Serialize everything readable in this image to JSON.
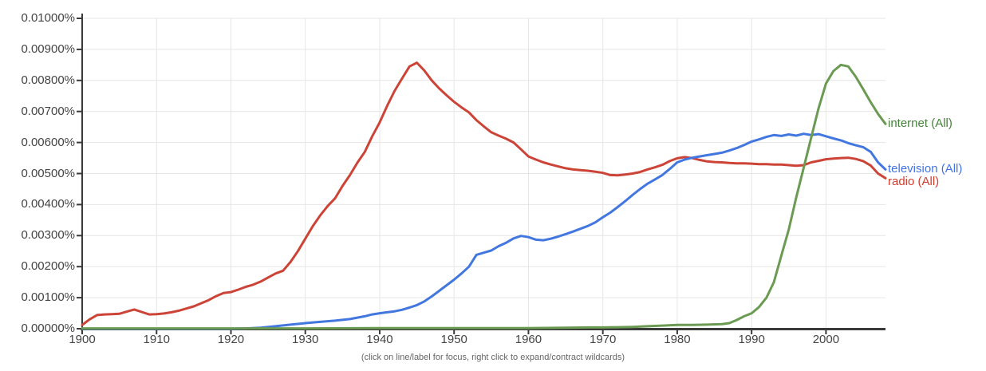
{
  "caption": "(click on line/label for focus, right click to expand/contract wildcards)",
  "colors": {
    "grid": "#e6e6e6",
    "axis": "#3a3a3a",
    "tick_text": "#444444",
    "caption_text": "#666666",
    "background": "#ffffff"
  },
  "chart_data": {
    "type": "line",
    "title": "",
    "xlabel": "",
    "ylabel": "",
    "grid": true,
    "legend_position": "right-end-labels",
    "x_axis": {
      "min": 1900,
      "max": 2008,
      "tick_years": [
        1900,
        1910,
        1920,
        1930,
        1940,
        1950,
        1960,
        1970,
        1980,
        1990,
        2000
      ],
      "tick_labels": [
        "1900",
        "1910",
        "1920",
        "1930",
        "1940",
        "1950",
        "1960",
        "1970",
        "1980",
        "1990",
        "2000"
      ]
    },
    "y_axis": {
      "min": 0,
      "max": 0.01,
      "tick_values": [
        0,
        0.001,
        0.002,
        0.003,
        0.004,
        0.005,
        0.006,
        0.007,
        0.008,
        0.009,
        0.01
      ],
      "tick_labels": [
        "0.00000%",
        "0.00100%",
        "0.00200%",
        "0.00300%",
        "0.00400%",
        "0.00500%",
        "0.00600%",
        "0.00700%",
        "0.00800%",
        "0.00900%",
        "0.01000%"
      ],
      "unit": "% of corpus"
    },
    "series": [
      {
        "name": "radio (All)",
        "key": "radio",
        "color": "#cc4437",
        "label_color": "#d43d2d",
        "points": [
          [
            1900,
            0.00012
          ],
          [
            1901,
            0.0003
          ],
          [
            1902,
            0.00044
          ],
          [
            1903,
            0.00046
          ],
          [
            1904,
            0.00047
          ],
          [
            1905,
            0.00048
          ],
          [
            1906,
            0.00055
          ],
          [
            1907,
            0.00062
          ],
          [
            1908,
            0.00054
          ],
          [
            1909,
            0.00046
          ],
          [
            1910,
            0.00047
          ],
          [
            1911,
            0.00049
          ],
          [
            1912,
            0.00053
          ],
          [
            1913,
            0.00058
          ],
          [
            1914,
            0.00065
          ],
          [
            1915,
            0.00072
          ],
          [
            1916,
            0.00082
          ],
          [
            1917,
            0.00092
          ],
          [
            1918,
            0.00105
          ],
          [
            1919,
            0.00115
          ],
          [
            1920,
            0.00118
          ],
          [
            1921,
            0.00126
          ],
          [
            1922,
            0.00135
          ],
          [
            1923,
            0.00142
          ],
          [
            1924,
            0.00152
          ],
          [
            1925,
            0.00165
          ],
          [
            1926,
            0.00178
          ],
          [
            1927,
            0.00187
          ],
          [
            1928,
            0.00215
          ],
          [
            1929,
            0.0025
          ],
          [
            1930,
            0.0029
          ],
          [
            1931,
            0.0033
          ],
          [
            1932,
            0.00365
          ],
          [
            1933,
            0.00395
          ],
          [
            1934,
            0.0042
          ],
          [
            1935,
            0.0046
          ],
          [
            1936,
            0.00495
          ],
          [
            1937,
            0.00535
          ],
          [
            1938,
            0.0057
          ],
          [
            1939,
            0.0062
          ],
          [
            1940,
            0.00665
          ],
          [
            1941,
            0.00718
          ],
          [
            1942,
            0.00766
          ],
          [
            1943,
            0.00806
          ],
          [
            1944,
            0.00845
          ],
          [
            1945,
            0.00857
          ],
          [
            1946,
            0.00832
          ],
          [
            1947,
            0.008
          ],
          [
            1948,
            0.00774
          ],
          [
            1949,
            0.00752
          ],
          [
            1950,
            0.00731
          ],
          [
            1951,
            0.00713
          ],
          [
            1952,
            0.00697
          ],
          [
            1953,
            0.00672
          ],
          [
            1954,
            0.00652
          ],
          [
            1955,
            0.00633
          ],
          [
            1956,
            0.00622
          ],
          [
            1957,
            0.00612
          ],
          [
            1958,
            0.006
          ],
          [
            1959,
            0.00578
          ],
          [
            1960,
            0.00555
          ],
          [
            1961,
            0.00545
          ],
          [
            1962,
            0.00536
          ],
          [
            1963,
            0.00529
          ],
          [
            1964,
            0.00523
          ],
          [
            1965,
            0.00517
          ],
          [
            1966,
            0.00513
          ],
          [
            1967,
            0.00511
          ],
          [
            1968,
            0.00509
          ],
          [
            1969,
            0.00506
          ],
          [
            1970,
            0.00502
          ],
          [
            1971,
            0.00495
          ],
          [
            1972,
            0.00494
          ],
          [
            1973,
            0.00497
          ],
          [
            1974,
            0.005
          ],
          [
            1975,
            0.00505
          ],
          [
            1976,
            0.00513
          ],
          [
            1977,
            0.0052
          ],
          [
            1978,
            0.00528
          ],
          [
            1979,
            0.0054
          ],
          [
            1980,
            0.00549
          ],
          [
            1981,
            0.00553
          ],
          [
            1982,
            0.0055
          ],
          [
            1983,
            0.00544
          ],
          [
            1984,
            0.00539
          ],
          [
            1985,
            0.00537
          ],
          [
            1986,
            0.00536
          ],
          [
            1987,
            0.00534
          ],
          [
            1988,
            0.00533
          ],
          [
            1989,
            0.00533
          ],
          [
            1990,
            0.00532
          ],
          [
            1991,
            0.0053
          ],
          [
            1992,
            0.0053
          ],
          [
            1993,
            0.00529
          ],
          [
            1994,
            0.00529
          ],
          [
            1995,
            0.00527
          ],
          [
            1996,
            0.00525
          ],
          [
            1997,
            0.00527
          ],
          [
            1998,
            0.00536
          ],
          [
            1999,
            0.00541
          ],
          [
            2000,
            0.00546
          ],
          [
            2001,
            0.00548
          ],
          [
            2002,
            0.0055
          ],
          [
            2003,
            0.00551
          ],
          [
            2004,
            0.00547
          ],
          [
            2005,
            0.0054
          ],
          [
            2006,
            0.00526
          ],
          [
            2007,
            0.005
          ],
          [
            2008,
            0.00485
          ]
        ]
      },
      {
        "name": "television (All)",
        "key": "television",
        "color": "#4377e0",
        "label_color": "#4274e8",
        "points": [
          [
            1900,
            0
          ],
          [
            1905,
            0
          ],
          [
            1910,
            0
          ],
          [
            1915,
            0
          ],
          [
            1920,
            0
          ],
          [
            1922,
            1e-05
          ],
          [
            1924,
            3e-05
          ],
          [
            1926,
            8e-05
          ],
          [
            1928,
            0.00013
          ],
          [
            1930,
            0.00018
          ],
          [
            1932,
            0.00022
          ],
          [
            1934,
            0.00026
          ],
          [
            1936,
            0.00031
          ],
          [
            1938,
            0.0004
          ],
          [
            1939,
            0.00046
          ],
          [
            1940,
            0.0005
          ],
          [
            1941,
            0.00053
          ],
          [
            1942,
            0.00056
          ],
          [
            1943,
            0.00061
          ],
          [
            1944,
            0.00068
          ],
          [
            1945,
            0.00076
          ],
          [
            1946,
            0.00088
          ],
          [
            1947,
            0.00104
          ],
          [
            1948,
            0.00122
          ],
          [
            1949,
            0.0014
          ],
          [
            1950,
            0.00158
          ],
          [
            1951,
            0.00178
          ],
          [
            1952,
            0.002
          ],
          [
            1953,
            0.00238
          ],
          [
            1954,
            0.00245
          ],
          [
            1955,
            0.00252
          ],
          [
            1956,
            0.00266
          ],
          [
            1957,
            0.00277
          ],
          [
            1958,
            0.00291
          ],
          [
            1959,
            0.00299
          ],
          [
            1960,
            0.00295
          ],
          [
            1961,
            0.00287
          ],
          [
            1962,
            0.00285
          ],
          [
            1963,
            0.0029
          ],
          [
            1964,
            0.00297
          ],
          [
            1965,
            0.00305
          ],
          [
            1966,
            0.00313
          ],
          [
            1967,
            0.00322
          ],
          [
            1968,
            0.00331
          ],
          [
            1969,
            0.00343
          ],
          [
            1970,
            0.00359
          ],
          [
            1971,
            0.00374
          ],
          [
            1972,
            0.00392
          ],
          [
            1973,
            0.00411
          ],
          [
            1974,
            0.00431
          ],
          [
            1975,
            0.0045
          ],
          [
            1976,
            0.00467
          ],
          [
            1977,
            0.00481
          ],
          [
            1978,
            0.00495
          ],
          [
            1979,
            0.00515
          ],
          [
            1980,
            0.00536
          ],
          [
            1981,
            0.00545
          ],
          [
            1982,
            0.00551
          ],
          [
            1983,
            0.00555
          ],
          [
            1984,
            0.00559
          ],
          [
            1985,
            0.00563
          ],
          [
            1986,
            0.00567
          ],
          [
            1987,
            0.00574
          ],
          [
            1988,
            0.00582
          ],
          [
            1989,
            0.00592
          ],
          [
            1990,
            0.00603
          ],
          [
            1991,
            0.0061
          ],
          [
            1992,
            0.00618
          ],
          [
            1993,
            0.00624
          ],
          [
            1994,
            0.00621
          ],
          [
            1995,
            0.00626
          ],
          [
            1996,
            0.00622
          ],
          [
            1997,
            0.00628
          ],
          [
            1998,
            0.00624
          ],
          [
            1999,
            0.00627
          ],
          [
            2000,
            0.0062
          ],
          [
            2001,
            0.00613
          ],
          [
            2002,
            0.00607
          ],
          [
            2003,
            0.00598
          ],
          [
            2004,
            0.00591
          ],
          [
            2005,
            0.00585
          ],
          [
            2006,
            0.0057
          ],
          [
            2007,
            0.00536
          ],
          [
            2008,
            0.00513
          ]
        ]
      },
      {
        "name": "internet (All)",
        "key": "internet",
        "color": "#6b9b52",
        "label_color": "#45823a",
        "points": [
          [
            1900,
            1e-05
          ],
          [
            1910,
            1e-05
          ],
          [
            1920,
            1e-05
          ],
          [
            1930,
            1e-05
          ],
          [
            1940,
            2e-05
          ],
          [
            1950,
            2e-05
          ],
          [
            1955,
            2e-05
          ],
          [
            1960,
            2e-05
          ],
          [
            1965,
            3e-05
          ],
          [
            1968,
            4e-05
          ],
          [
            1970,
            4e-05
          ],
          [
            1972,
            5e-05
          ],
          [
            1974,
            6e-05
          ],
          [
            1976,
            8e-05
          ],
          [
            1978,
            0.0001
          ],
          [
            1980,
            0.00012
          ],
          [
            1982,
            0.00012
          ],
          [
            1984,
            0.00013
          ],
          [
            1986,
            0.00015
          ],
          [
            1987,
            0.00018
          ],
          [
            1988,
            0.00028
          ],
          [
            1989,
            0.0004
          ],
          [
            1990,
            0.0005
          ],
          [
            1991,
            0.0007
          ],
          [
            1992,
            0.001
          ],
          [
            1993,
            0.0015
          ],
          [
            1994,
            0.00236
          ],
          [
            1995,
            0.0032
          ],
          [
            1996,
            0.00423
          ],
          [
            1997,
            0.00518
          ],
          [
            1998,
            0.00615
          ],
          [
            1999,
            0.0071
          ],
          [
            2000,
            0.0079
          ],
          [
            2001,
            0.0083
          ],
          [
            2002,
            0.0085
          ],
          [
            2003,
            0.00845
          ],
          [
            2004,
            0.00812
          ],
          [
            2005,
            0.00772
          ],
          [
            2006,
            0.0073
          ],
          [
            2007,
            0.00692
          ],
          [
            2008,
            0.0066
          ]
        ]
      }
    ]
  }
}
